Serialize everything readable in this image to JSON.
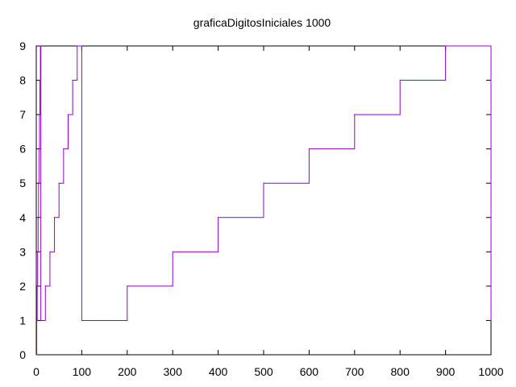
{
  "chart_data": {
    "type": "line",
    "title": "graficaDigitosIniciales 1000",
    "xlabel": "",
    "ylabel": "",
    "xlim": [
      0,
      1000
    ],
    "ylim": [
      0,
      9
    ],
    "x_ticks": [
      "0",
      "100",
      "200",
      "300",
      "400",
      "500",
      "600",
      "700",
      "800",
      "900",
      "1000"
    ],
    "y_ticks": [
      "0",
      "1",
      "2",
      "3",
      "4",
      "5",
      "6",
      "7",
      "8",
      "9"
    ],
    "grid": false,
    "legend": "none",
    "line_color": "#9400d3",
    "series": [
      {
        "step": "post",
        "x": [
          0,
          1,
          2,
          3,
          4,
          5,
          6,
          7,
          8,
          9,
          10,
          20,
          30,
          40,
          50,
          60,
          70,
          80,
          90,
          100,
          200,
          300,
          400,
          500,
          600,
          700,
          800,
          900,
          1000
        ],
        "y": [
          0,
          1,
          2,
          3,
          4,
          5,
          6,
          7,
          8,
          9,
          1,
          2,
          3,
          4,
          5,
          6,
          7,
          8,
          9,
          1,
          2,
          3,
          4,
          5,
          6,
          7,
          8,
          9,
          1
        ]
      }
    ]
  }
}
